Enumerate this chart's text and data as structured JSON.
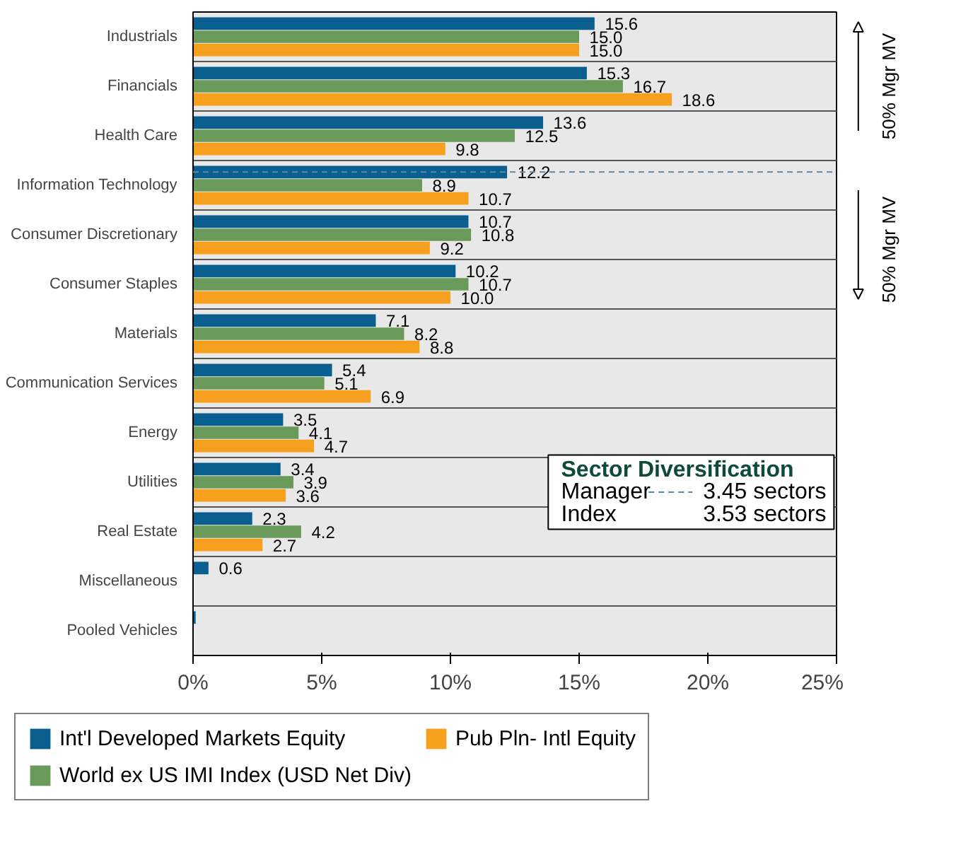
{
  "chart_data": {
    "type": "bar",
    "orientation": "horizontal",
    "categories": [
      "Industrials",
      "Financials",
      "Health Care",
      "Information Technology",
      "Consumer Discretionary",
      "Consumer Staples",
      "Materials",
      "Communication Services",
      "Energy",
      "Utilities",
      "Real Estate",
      "Miscellaneous",
      "Pooled Vehicles"
    ],
    "series": [
      {
        "name": "Int'l Developed Markets Equity",
        "color": "#0b5f8f",
        "values": [
          15.6,
          15.3,
          13.6,
          12.2,
          10.7,
          10.2,
          7.1,
          5.4,
          3.5,
          3.4,
          2.3,
          0.6,
          0.1
        ],
        "value_labels": [
          "15.6",
          "15.3",
          "13.6",
          "12.2",
          "10.7",
          "10.2",
          "7.1",
          "5.4",
          "3.5",
          "3.4",
          "2.3",
          "0.6",
          null
        ]
      },
      {
        "name": "World ex US IMI Index (USD Net Div)",
        "color": "#6a9a5a",
        "values": [
          15.0,
          16.7,
          12.5,
          8.9,
          10.8,
          10.7,
          8.2,
          5.1,
          4.1,
          3.9,
          4.2,
          null,
          null
        ],
        "value_labels": [
          "15.0",
          "16.7",
          "12.5",
          "8.9",
          "10.8",
          "10.7",
          "8.2",
          "5.1",
          "4.1",
          "3.9",
          "4.2",
          null,
          null
        ]
      },
      {
        "name": "Pub Pln- Intl Equity",
        "color": "#f7a01f",
        "values": [
          15.0,
          18.6,
          9.8,
          10.7,
          9.2,
          10.0,
          8.8,
          6.9,
          4.7,
          3.6,
          2.7,
          null,
          null
        ],
        "value_labels": [
          "15.0",
          "18.6",
          "9.8",
          "10.7",
          "9.2",
          "10.0",
          "8.8",
          "6.9",
          "4.7",
          "3.6",
          "2.7",
          null,
          null
        ]
      }
    ],
    "xlim": [
      0,
      25
    ],
    "xticks": [
      {
        "value": 0,
        "label": "0%"
      },
      {
        "value": 5,
        "label": "5%"
      },
      {
        "value": 10,
        "label": "10%"
      },
      {
        "value": 15,
        "label": "15%"
      },
      {
        "value": 20,
        "label": "20%"
      },
      {
        "value": 25,
        "label": "25%"
      }
    ],
    "grid": "y",
    "legend": "bottom",
    "ref_lines": [
      {
        "axis": "y",
        "value": "Information Technology",
        "color": "#5a8aa8",
        "line_style": "dashed"
      }
    ],
    "annotations": [
      "Sector Diversification",
      "Manager",
      "3.45 sectors",
      "Index",
      "3.53 sectors",
      "50% Mgr MV",
      "50% Mgr MV"
    ]
  }
}
